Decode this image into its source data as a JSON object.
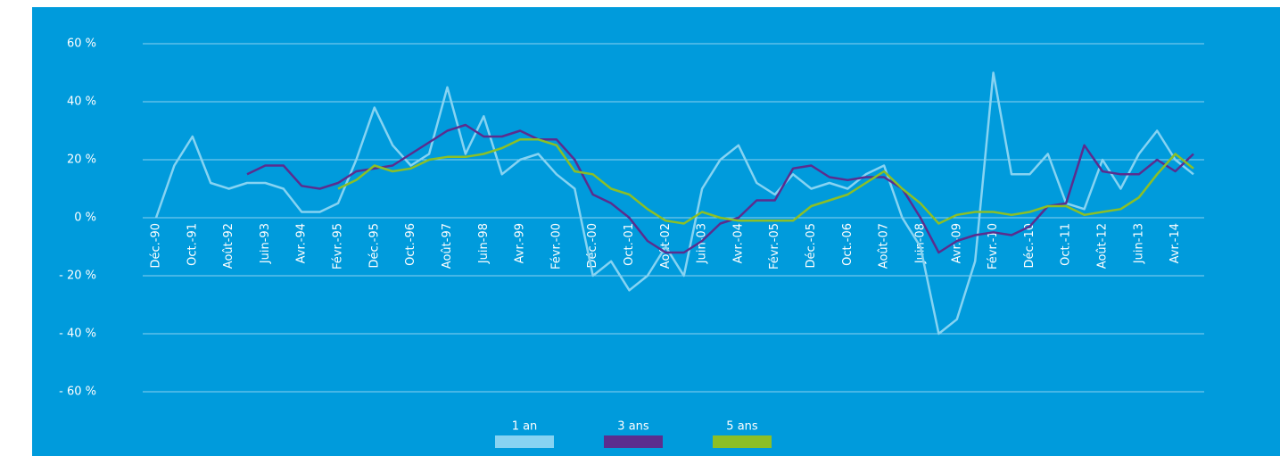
{
  "chart_data": {
    "type": "line",
    "categories": [
      "Déc.-90",
      null,
      "Oct.-91",
      null,
      "Août-92",
      null,
      "Juin-93",
      null,
      "Avr.-94",
      null,
      "Févr.-95",
      null,
      "Déc.-95",
      null,
      "Oct.-96",
      null,
      "Août-97",
      null,
      "Juin-98",
      null,
      "Avr.-99",
      null,
      "Févr.-00",
      null,
      "Déc.-00",
      null,
      "Oct.-01",
      null,
      "Août-02",
      null,
      "Juin-03",
      null,
      "Avr.-04",
      null,
      "Févr.-05",
      null,
      "Déc.-05",
      null,
      "Oct.-06",
      null,
      "Août-07",
      null,
      "Juin-08",
      null,
      "Avr.-09",
      null,
      "Févr.-10",
      null,
      "Déc.-10",
      null,
      "Oct.-11",
      null,
      "Août-12",
      null,
      "Juin-13",
      null,
      "Avr.-14",
      null
    ],
    "series": [
      {
        "name": "1 an",
        "color": "#86d3f2",
        "values": [
          0,
          18,
          28,
          12,
          10,
          12,
          12,
          10,
          2,
          2,
          5,
          20,
          38,
          25,
          18,
          22,
          45,
          22,
          35,
          15,
          20,
          22,
          15,
          10,
          -20,
          -15,
          -25,
          -20,
          -10,
          -20,
          10,
          20,
          25,
          12,
          8,
          15,
          10,
          12,
          10,
          15,
          18,
          0,
          -10,
          -40,
          -35,
          -15,
          50,
          15,
          15,
          22,
          5,
          3,
          20,
          10,
          22,
          30,
          20,
          15
        ]
      },
      {
        "name": "3 ans",
        "color": "#5b2d8e",
        "values": [
          null,
          null,
          null,
          null,
          null,
          15,
          18,
          18,
          11,
          10,
          12,
          16,
          17,
          18,
          22,
          26,
          30,
          32,
          28,
          28,
          30,
          27,
          27,
          20,
          8,
          5,
          0,
          -8,
          -12,
          -12,
          -8,
          -2,
          0,
          6,
          6,
          17,
          18,
          14,
          13,
          14,
          14,
          10,
          0,
          -12,
          -8,
          -6,
          -5,
          -6,
          -3,
          4,
          5,
          25,
          16,
          15,
          15,
          20,
          16,
          22
        ]
      },
      {
        "name": "5 ans",
        "color": "#8cbf26",
        "values": [
          null,
          null,
          null,
          null,
          null,
          null,
          null,
          null,
          null,
          null,
          10,
          13,
          18,
          16,
          17,
          20,
          21,
          21,
          22,
          24,
          27,
          27,
          25,
          16,
          15,
          10,
          8,
          3,
          -1,
          -2,
          2,
          0,
          -1,
          -1,
          -1,
          -1,
          4,
          6,
          8,
          12,
          16,
          10,
          5,
          -2,
          1,
          2,
          2,
          1,
          2,
          4,
          4,
          1,
          2,
          3,
          7,
          15,
          22,
          17
        ]
      }
    ],
    "ylim": [
      -70,
      70
    ],
    "yticks": [
      {
        "value": -60,
        "label": "- 60 %"
      },
      {
        "value": -40,
        "label": "- 40 %"
      },
      {
        "value": -20,
        "label": "- 20 %"
      },
      {
        "value": 0,
        "label": "0 %"
      },
      {
        "value": 20,
        "label": "20 %"
      },
      {
        "value": 40,
        "label": "40 %"
      },
      {
        "value": 60,
        "label": "60 %"
      }
    ],
    "grid": true,
    "legend": "bottom"
  }
}
